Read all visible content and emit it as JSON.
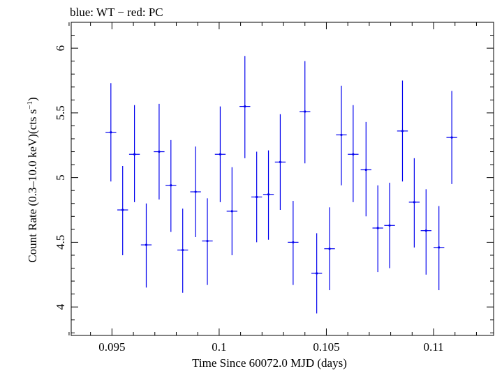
{
  "chart_data": {
    "type": "scatter",
    "title": "blue: WT − red: PC",
    "xlabel": "Time Since 60072.0 MJD (days)",
    "ylabel_main": "Count Rate (0.3–10.0 keV)(cts s",
    "ylabel_sup": "−1",
    "ylabel_close": ")",
    "xlim": [
      0.0931,
      0.1128
    ],
    "ylim": [
      3.78,
      6.2
    ],
    "xticks": [
      0.095,
      0.1,
      0.105,
      0.11
    ],
    "xtick_labels": [
      "0.095",
      "0.1",
      "0.105",
      "0.11"
    ],
    "yticks": [
      4,
      4.5,
      5,
      5.5,
      6
    ],
    "ytick_labels": [
      "4",
      "4.5",
      "5",
      "5.5",
      "6"
    ],
    "series_color": "#0000ee",
    "points": [
      {
        "x": 0.09495,
        "xerr": 0.00025,
        "y": 5.35,
        "ylo": 4.97,
        "yhi": 5.73
      },
      {
        "x": 0.0955,
        "xerr": 0.00025,
        "y": 4.75,
        "ylo": 4.4,
        "yhi": 5.09
      },
      {
        "x": 0.09605,
        "xerr": 0.00025,
        "y": 5.18,
        "ylo": 4.81,
        "yhi": 5.56
      },
      {
        "x": 0.0966,
        "xerr": 0.00025,
        "y": 4.48,
        "ylo": 4.15,
        "yhi": 4.8
      },
      {
        "x": 0.0972,
        "xerr": 0.00025,
        "y": 5.2,
        "ylo": 4.83,
        "yhi": 5.57
      },
      {
        "x": 0.09775,
        "xerr": 0.00025,
        "y": 4.94,
        "ylo": 4.58,
        "yhi": 5.29
      },
      {
        "x": 0.0983,
        "xerr": 0.00025,
        "y": 4.44,
        "ylo": 4.11,
        "yhi": 4.76
      },
      {
        "x": 0.0989,
        "xerr": 0.00025,
        "y": 4.89,
        "ylo": 4.54,
        "yhi": 5.24
      },
      {
        "x": 0.09945,
        "xerr": 0.00025,
        "y": 4.51,
        "ylo": 4.17,
        "yhi": 4.84
      },
      {
        "x": 0.10005,
        "xerr": 0.00025,
        "y": 5.18,
        "ylo": 4.81,
        "yhi": 5.55
      },
      {
        "x": 0.1006,
        "xerr": 0.00025,
        "y": 4.74,
        "ylo": 4.4,
        "yhi": 5.08
      },
      {
        "x": 0.1012,
        "xerr": 0.00025,
        "y": 5.55,
        "ylo": 5.15,
        "yhi": 5.94
      },
      {
        "x": 0.10175,
        "xerr": 0.00025,
        "y": 4.85,
        "ylo": 4.5,
        "yhi": 5.2
      },
      {
        "x": 0.1023,
        "xerr": 0.00025,
        "y": 4.87,
        "ylo": 4.52,
        "yhi": 5.21
      },
      {
        "x": 0.10285,
        "xerr": 0.00025,
        "y": 5.12,
        "ylo": 4.75,
        "yhi": 5.49
      },
      {
        "x": 0.10345,
        "xerr": 0.00025,
        "y": 4.5,
        "ylo": 4.17,
        "yhi": 4.82
      },
      {
        "x": 0.104,
        "xerr": 0.00025,
        "y": 5.51,
        "ylo": 5.11,
        "yhi": 5.9
      },
      {
        "x": 0.10455,
        "xerr": 0.00025,
        "y": 4.26,
        "ylo": 3.95,
        "yhi": 4.57
      },
      {
        "x": 0.10515,
        "xerr": 0.00025,
        "y": 4.45,
        "ylo": 4.13,
        "yhi": 4.77
      },
      {
        "x": 0.1057,
        "xerr": 0.00025,
        "y": 5.33,
        "ylo": 4.94,
        "yhi": 5.71
      },
      {
        "x": 0.10625,
        "xerr": 0.00025,
        "y": 5.18,
        "ylo": 4.81,
        "yhi": 5.56
      },
      {
        "x": 0.10685,
        "xerr": 0.00025,
        "y": 5.06,
        "ylo": 4.7,
        "yhi": 5.43
      },
      {
        "x": 0.1074,
        "xerr": 0.00025,
        "y": 4.61,
        "ylo": 4.27,
        "yhi": 4.94
      },
      {
        "x": 0.10795,
        "xerr": 0.00025,
        "y": 4.63,
        "ylo": 4.3,
        "yhi": 4.96
      },
      {
        "x": 0.10855,
        "xerr": 0.00025,
        "y": 5.36,
        "ylo": 4.97,
        "yhi": 5.75
      },
      {
        "x": 0.1091,
        "xerr": 0.00025,
        "y": 4.81,
        "ylo": 4.46,
        "yhi": 5.15
      },
      {
        "x": 0.10965,
        "xerr": 0.00025,
        "y": 4.59,
        "ylo": 4.25,
        "yhi": 4.91
      },
      {
        "x": 0.11025,
        "xerr": 0.00025,
        "y": 4.46,
        "ylo": 4.13,
        "yhi": 4.78
      },
      {
        "x": 0.11085,
        "xerr": 0.00025,
        "y": 5.31,
        "ylo": 4.95,
        "yhi": 5.67
      }
    ]
  }
}
